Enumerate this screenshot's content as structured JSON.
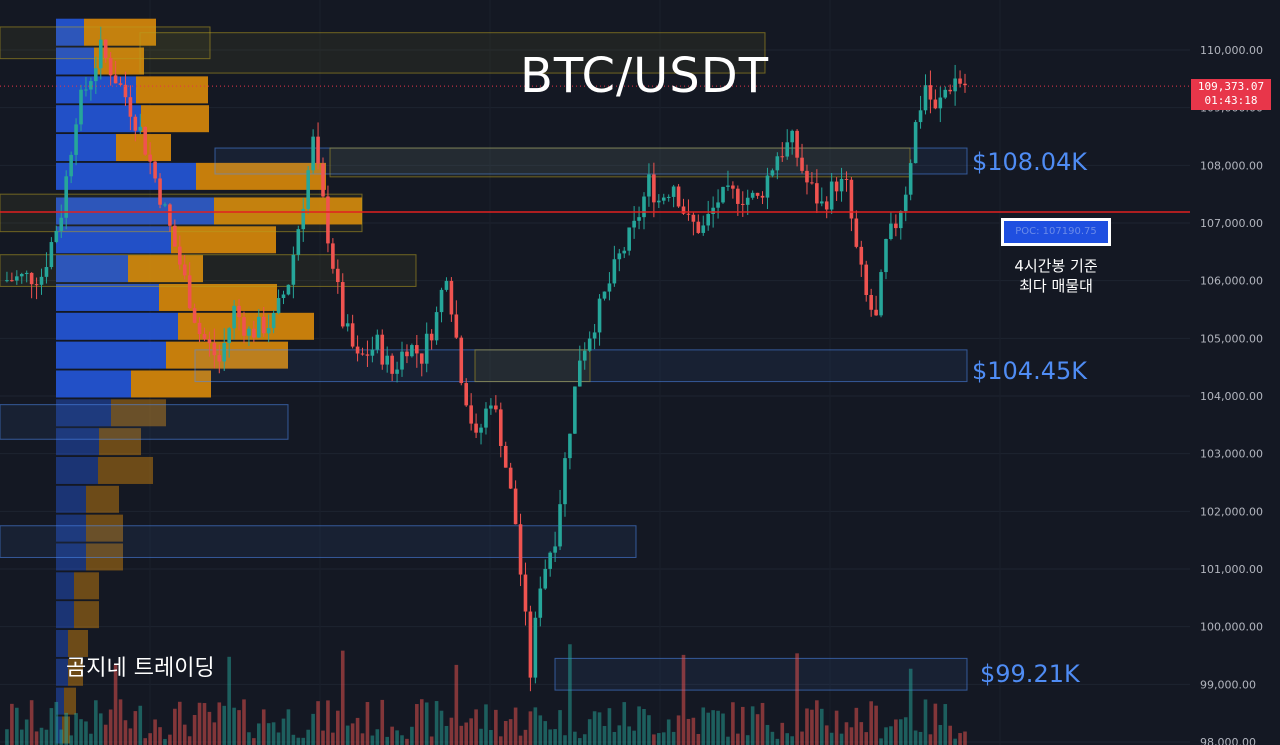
{
  "title": "BTC/USDT",
  "watermark": "곰지네 트레이딩",
  "current_price": "109,373.07",
  "countdown": "01:43:18",
  "poc": {
    "label": "POC: 107190.75",
    "note_line1": "4시간봉 기준",
    "note_line2": "최다 매물대"
  },
  "zones": [
    {
      "label": "$108.04K",
      "price": 108040
    },
    {
      "label": "$104.45K",
      "price": 104450
    },
    {
      "label": "$99.21K",
      "price": 99210
    }
  ],
  "colors": {
    "background": "#141823",
    "up": "#26a69a",
    "down": "#ef5350",
    "buy_volume": "#2456d6",
    "sell_volume": "#d98a0a",
    "zone_blue": "#4f8cf4",
    "zone_yellow": "#b8a020",
    "poc_line": "#e02020"
  },
  "chart_data": {
    "type": "candlestick",
    "title": "BTC/USDT",
    "y_ticks": [
      "110,000.00",
      "109,000.00",
      "108,000.00",
      "107,000.00",
      "106,000.00",
      "105,000.00",
      "104,000.00",
      "103,000.00",
      "102,000.00",
      "101,000.00",
      "100,000.00",
      "99,000.00",
      "98,000.00"
    ],
    "ylim": [
      97850,
      110800
    ],
    "poc_price": 107190.75,
    "last_price": 109373.07,
    "close_path": [
      [
        0,
        106000
      ],
      [
        8,
        106100
      ],
      [
        12,
        107200
      ],
      [
        15,
        108900
      ],
      [
        20,
        110000
      ],
      [
        25,
        109200
      ],
      [
        28,
        108600
      ],
      [
        32,
        107500
      ],
      [
        35,
        106600
      ],
      [
        40,
        105100
      ],
      [
        44,
        104600
      ],
      [
        47,
        105500
      ],
      [
        50,
        105100
      ],
      [
        55,
        105300
      ],
      [
        58,
        106000
      ],
      [
        61,
        107400
      ],
      [
        63,
        108400
      ],
      [
        66,
        106800
      ],
      [
        69,
        105300
      ],
      [
        72,
        104600
      ],
      [
        76,
        104900
      ],
      [
        79,
        104400
      ],
      [
        82,
        104900
      ],
      [
        85,
        104700
      ],
      [
        88,
        105400
      ],
      [
        90,
        106200
      ],
      [
        93,
        104400
      ],
      [
        96,
        103200
      ],
      [
        99,
        104000
      ],
      [
        101,
        103300
      ],
      [
        104,
        101800
      ],
      [
        107,
        99200
      ],
      [
        109,
        100800
      ],
      [
        112,
        101600
      ],
      [
        115,
        103500
      ],
      [
        117,
        104700
      ],
      [
        121,
        105500
      ],
      [
        125,
        106400
      ],
      [
        128,
        106900
      ],
      [
        131,
        107700
      ],
      [
        133,
        107400
      ],
      [
        136,
        107700
      ],
      [
        139,
        107000
      ],
      [
        142,
        106900
      ],
      [
        145,
        107400
      ],
      [
        149,
        107500
      ],
      [
        153,
        107400
      ],
      [
        157,
        108200
      ],
      [
        160,
        108400
      ],
      [
        163,
        107700
      ],
      [
        166,
        107300
      ],
      [
        169,
        107700
      ],
      [
        171,
        107600
      ],
      [
        173,
        106500
      ],
      [
        175,
        105700
      ],
      [
        177,
        105300
      ],
      [
        179,
        106600
      ],
      [
        181,
        107000
      ],
      [
        183,
        107600
      ],
      [
        185,
        108700
      ],
      [
        187,
        109400
      ],
      [
        189,
        108900
      ],
      [
        191,
        109300
      ],
      [
        193,
        109500
      ],
      [
        195,
        109400
      ]
    ],
    "volume_profile": [
      {
        "price": 110300,
        "buy": 28,
        "sell": 72
      },
      {
        "price": 109800,
        "buy": 38,
        "sell": 50
      },
      {
        "price": 109300,
        "buy": 80,
        "sell": 72
      },
      {
        "price": 108800,
        "buy": 85,
        "sell": 68
      },
      {
        "price": 108300,
        "buy": 60,
        "sell": 55
      },
      {
        "price": 107800,
        "buy": 140,
        "sell": 130
      },
      {
        "price": 107200,
        "buy": 158,
        "sell": 148
      },
      {
        "price": 106700,
        "buy": 115,
        "sell": 105
      },
      {
        "price": 106200,
        "buy": 72,
        "sell": 75
      },
      {
        "price": 105700,
        "buy": 103,
        "sell": 118
      },
      {
        "price": 105200,
        "buy": 122,
        "sell": 136
      },
      {
        "price": 104700,
        "buy": 110,
        "sell": 122
      },
      {
        "price": 104200,
        "buy": 75,
        "sell": 80
      },
      {
        "price": 103700,
        "buy": 55,
        "sell": 55
      },
      {
        "price": 103200,
        "buy": 43,
        "sell": 42
      },
      {
        "price": 102700,
        "buy": 42,
        "sell": 55
      },
      {
        "price": 102200,
        "buy": 30,
        "sell": 33
      },
      {
        "price": 101700,
        "buy": 30,
        "sell": 37
      },
      {
        "price": 101200,
        "buy": 30,
        "sell": 37
      },
      {
        "price": 100700,
        "buy": 18,
        "sell": 25
      },
      {
        "price": 100200,
        "buy": 18,
        "sell": 25
      },
      {
        "price": 99700,
        "buy": 12,
        "sell": 20
      },
      {
        "price": 99200,
        "buy": 12,
        "sell": 15
      },
      {
        "price": 98700,
        "buy": 8,
        "sell": 12
      },
      {
        "price": 98200,
        "buy": 6,
        "sell": 8
      }
    ],
    "zone_boxes": [
      {
        "low": 109850,
        "high": 110400,
        "color": "yellow"
      },
      {
        "low": 109600,
        "high": 110300,
        "color": "yellow"
      },
      {
        "low": 107850,
        "high": 108300,
        "color": "blue"
      },
      {
        "low": 107800,
        "high": 108300,
        "color": "yellow"
      },
      {
        "low": 106850,
        "high": 107500,
        "color": "yellow"
      },
      {
        "low": 105900,
        "high": 106450,
        "color": "yellow"
      },
      {
        "low": 104250,
        "high": 104800,
        "color": "blue"
      },
      {
        "low": 104250,
        "high": 104800,
        "color": "yellow"
      },
      {
        "low": 103250,
        "high": 103850,
        "color": "blue"
      },
      {
        "low": 101200,
        "high": 101750,
        "color": "blue"
      },
      {
        "low": 98900,
        "high": 99450,
        "color": "blue"
      }
    ]
  }
}
